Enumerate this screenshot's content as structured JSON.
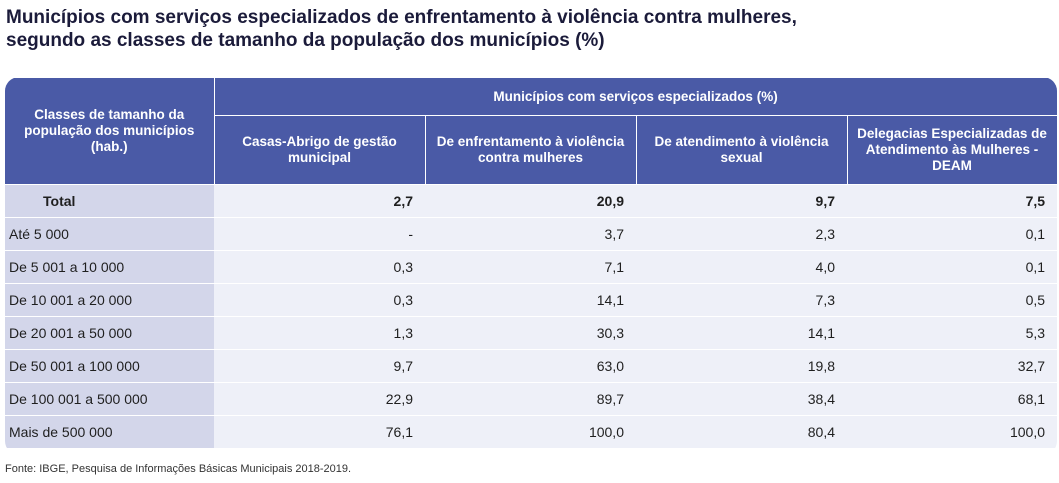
{
  "title": {
    "line1": "Municípios com serviços especializados de enfrentamento à violência contra mulheres,",
    "line2": "segundo as classes de tamanho da população dos municípios (%)"
  },
  "table": {
    "row_header": "Classes de tamanho da população dos municípios (hab.)",
    "group_header": "Municípios com serviços especializados (%)",
    "columns": [
      "Casas-Abrigo de gestão municipal",
      "De enfrentamento à violência contra mulheres",
      "De atendimento à violência sexual",
      "Delegacias Especializadas de Atendimento às Mulheres - DEAM"
    ],
    "rows": [
      {
        "label": "Total",
        "values": [
          "2,7",
          "20,9",
          "9,7",
          "7,5"
        ]
      },
      {
        "label": "Até 5 000",
        "values": [
          "-",
          "3,7",
          "2,3",
          "0,1"
        ]
      },
      {
        "label": "De 5 001 a 10 000",
        "values": [
          "0,3",
          "7,1",
          "4,0",
          "0,1"
        ]
      },
      {
        "label": "De 10 001 a 20 000",
        "values": [
          "0,3",
          "14,1",
          "7,3",
          "0,5"
        ]
      },
      {
        "label": "De 20 001 a 50 000",
        "values": [
          "1,3",
          "30,3",
          "14,1",
          "5,3"
        ]
      },
      {
        "label": "De 50 001 a 100 000",
        "values": [
          "9,7",
          "63,0",
          "19,8",
          "32,7"
        ]
      },
      {
        "label": "De 100 001 a 500 000",
        "values": [
          "22,9",
          "89,7",
          "38,4",
          "68,1"
        ]
      },
      {
        "label": "Mais de 500 000",
        "values": [
          "76,1",
          "100,0",
          "80,4",
          "100,0"
        ]
      }
    ]
  },
  "source": "Fonte: IBGE, Pesquisa de Informações Básicas Municipais 2018-2019."
}
